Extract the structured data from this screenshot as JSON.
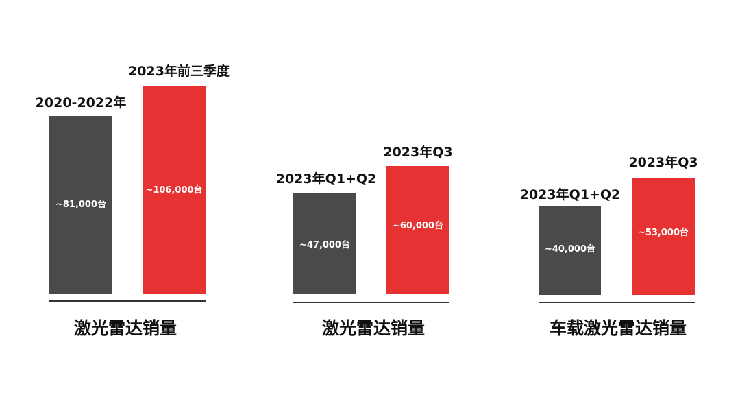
{
  "chart_data": [
    {
      "type": "bar",
      "title": "激光雷达销量",
      "categories": [
        "2020-2022年",
        "2023年前三季度"
      ],
      "values": [
        81000,
        106000
      ],
      "value_labels": [
        "~81,000台",
        "~106,000台"
      ],
      "colors": [
        "#4a4a4a",
        "#e63232"
      ]
    },
    {
      "type": "bar",
      "title": "激光雷达销量",
      "categories": [
        "2023年Q1+Q2",
        "2023年Q3"
      ],
      "values": [
        47000,
        60000
      ],
      "value_labels": [
        "~47,000台",
        "~60,000台"
      ],
      "colors": [
        "#4a4a4a",
        "#e63232"
      ]
    },
    {
      "type": "bar",
      "title": "车载激光雷达销量",
      "categories": [
        "2023年Q1+Q2",
        "2023年Q3"
      ],
      "values": [
        40000,
        53000
      ],
      "value_labels": [
        "~40,000台",
        "~53,000台"
      ],
      "colors": [
        "#4a4a4a",
        "#e63232"
      ]
    }
  ]
}
